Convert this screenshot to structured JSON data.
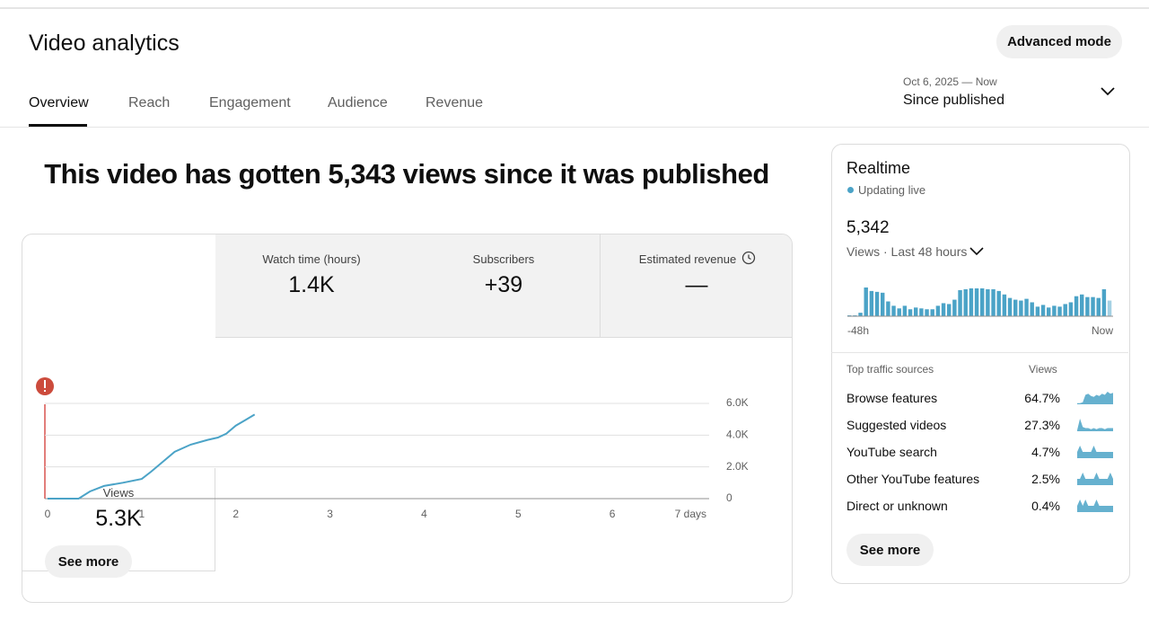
{
  "header": {
    "title": "Video analytics",
    "advanced_mode": "Advanced mode"
  },
  "tabs": [
    "Overview",
    "Reach",
    "Engagement",
    "Audience",
    "Revenue"
  ],
  "date_range": {
    "range": "Oct 6, 2025 — Now",
    "label": "Since published"
  },
  "headline": "This video has gotten 5,343 views since it was published",
  "metrics": [
    {
      "label": "Views",
      "value": "5.3K"
    },
    {
      "label": "Watch time (hours)",
      "value": "1.4K"
    },
    {
      "label": "Subscribers",
      "value": "+39"
    },
    {
      "label": "Estimated revenue",
      "value": "—"
    }
  ],
  "see_more": "See more",
  "realtime": {
    "title": "Realtime",
    "status": "Updating live",
    "count": "5,342",
    "period": "Views · Last 48 hours",
    "see_more": "See more"
  },
  "traffic_sources": {
    "header": "Top traffic sources",
    "metric": "Views",
    "rows": [
      {
        "name": "Browse features",
        "share": "64.7%",
        "trend": [
          1,
          1,
          2,
          9,
          10,
          8,
          7,
          9,
          8,
          10,
          9,
          12,
          10,
          11
        ]
      },
      {
        "name": "Suggested videos",
        "share": "27.3%",
        "trend": [
          1,
          12,
          4,
          3,
          3,
          2,
          3,
          2,
          3,
          3,
          2,
          3,
          3,
          3
        ]
      },
      {
        "name": "YouTube search",
        "share": "4.7%",
        "trend": [
          1,
          2,
          1,
          1,
          1,
          1,
          2,
          1,
          1,
          1,
          1,
          1,
          1,
          1
        ]
      },
      {
        "name": "Other YouTube features",
        "share": "2.5%",
        "trend": [
          1,
          1,
          2,
          1,
          1,
          1,
          1,
          2,
          1,
          1,
          1,
          1,
          2,
          1
        ]
      },
      {
        "name": "Direct or unknown",
        "share": "0.4%",
        "trend": [
          1,
          2,
          1,
          2,
          1,
          1,
          1,
          2,
          1,
          1,
          1,
          1,
          1,
          1
        ]
      }
    ]
  },
  "chart_data": [
    {
      "type": "line",
      "color": "#4ba3c7",
      "x": [
        0,
        0.33,
        0.45,
        0.6,
        0.8,
        1.0,
        1.1,
        1.24,
        1.35,
        1.52,
        1.7,
        1.81,
        1.9,
        2.0,
        2.1,
        2.2
      ],
      "values": [
        0,
        0,
        450,
        800,
        1000,
        1240,
        1700,
        2400,
        2950,
        3400,
        3700,
        3850,
        4100,
        4600,
        4950,
        5300
      ],
      "xlim": [
        0,
        7
      ],
      "xticks": [
        0,
        1,
        2,
        3,
        4,
        5,
        6,
        {
          "value": 7,
          "label": "7 days"
        }
      ],
      "ylim": [
        0,
        6000
      ],
      "yticks": [
        0,
        {
          "value": 2000,
          "label": "2.0K"
        },
        {
          "value": 4000,
          "label": "4.0K"
        },
        {
          "value": 6000,
          "label": "6.0K"
        }
      ],
      "grid": true
    },
    {
      "type": "bar",
      "color": "#4ba3c7",
      "categories": [
        "-48h",
        null,
        null,
        null,
        null,
        null,
        null,
        null,
        null,
        null,
        null,
        null,
        null,
        null,
        null,
        null,
        null,
        null,
        null,
        null,
        null,
        null,
        null,
        null,
        null,
        null,
        null,
        null,
        null,
        null,
        null,
        null,
        null,
        null,
        null,
        null,
        null,
        null,
        null,
        null,
        null,
        null,
        null,
        null,
        null,
        null,
        null,
        "Now"
      ],
      "values": [
        6,
        6,
        24,
        198,
        174,
        168,
        162,
        102,
        72,
        54,
        72,
        48,
        60,
        54,
        48,
        48,
        72,
        90,
        84,
        114,
        180,
        186,
        192,
        192,
        192,
        186,
        186,
        174,
        150,
        126,
        114,
        108,
        120,
        96,
        66,
        78,
        60,
        72,
        66,
        84,
        96,
        138,
        150,
        132,
        132,
        126,
        186,
        108
      ]
    }
  ]
}
